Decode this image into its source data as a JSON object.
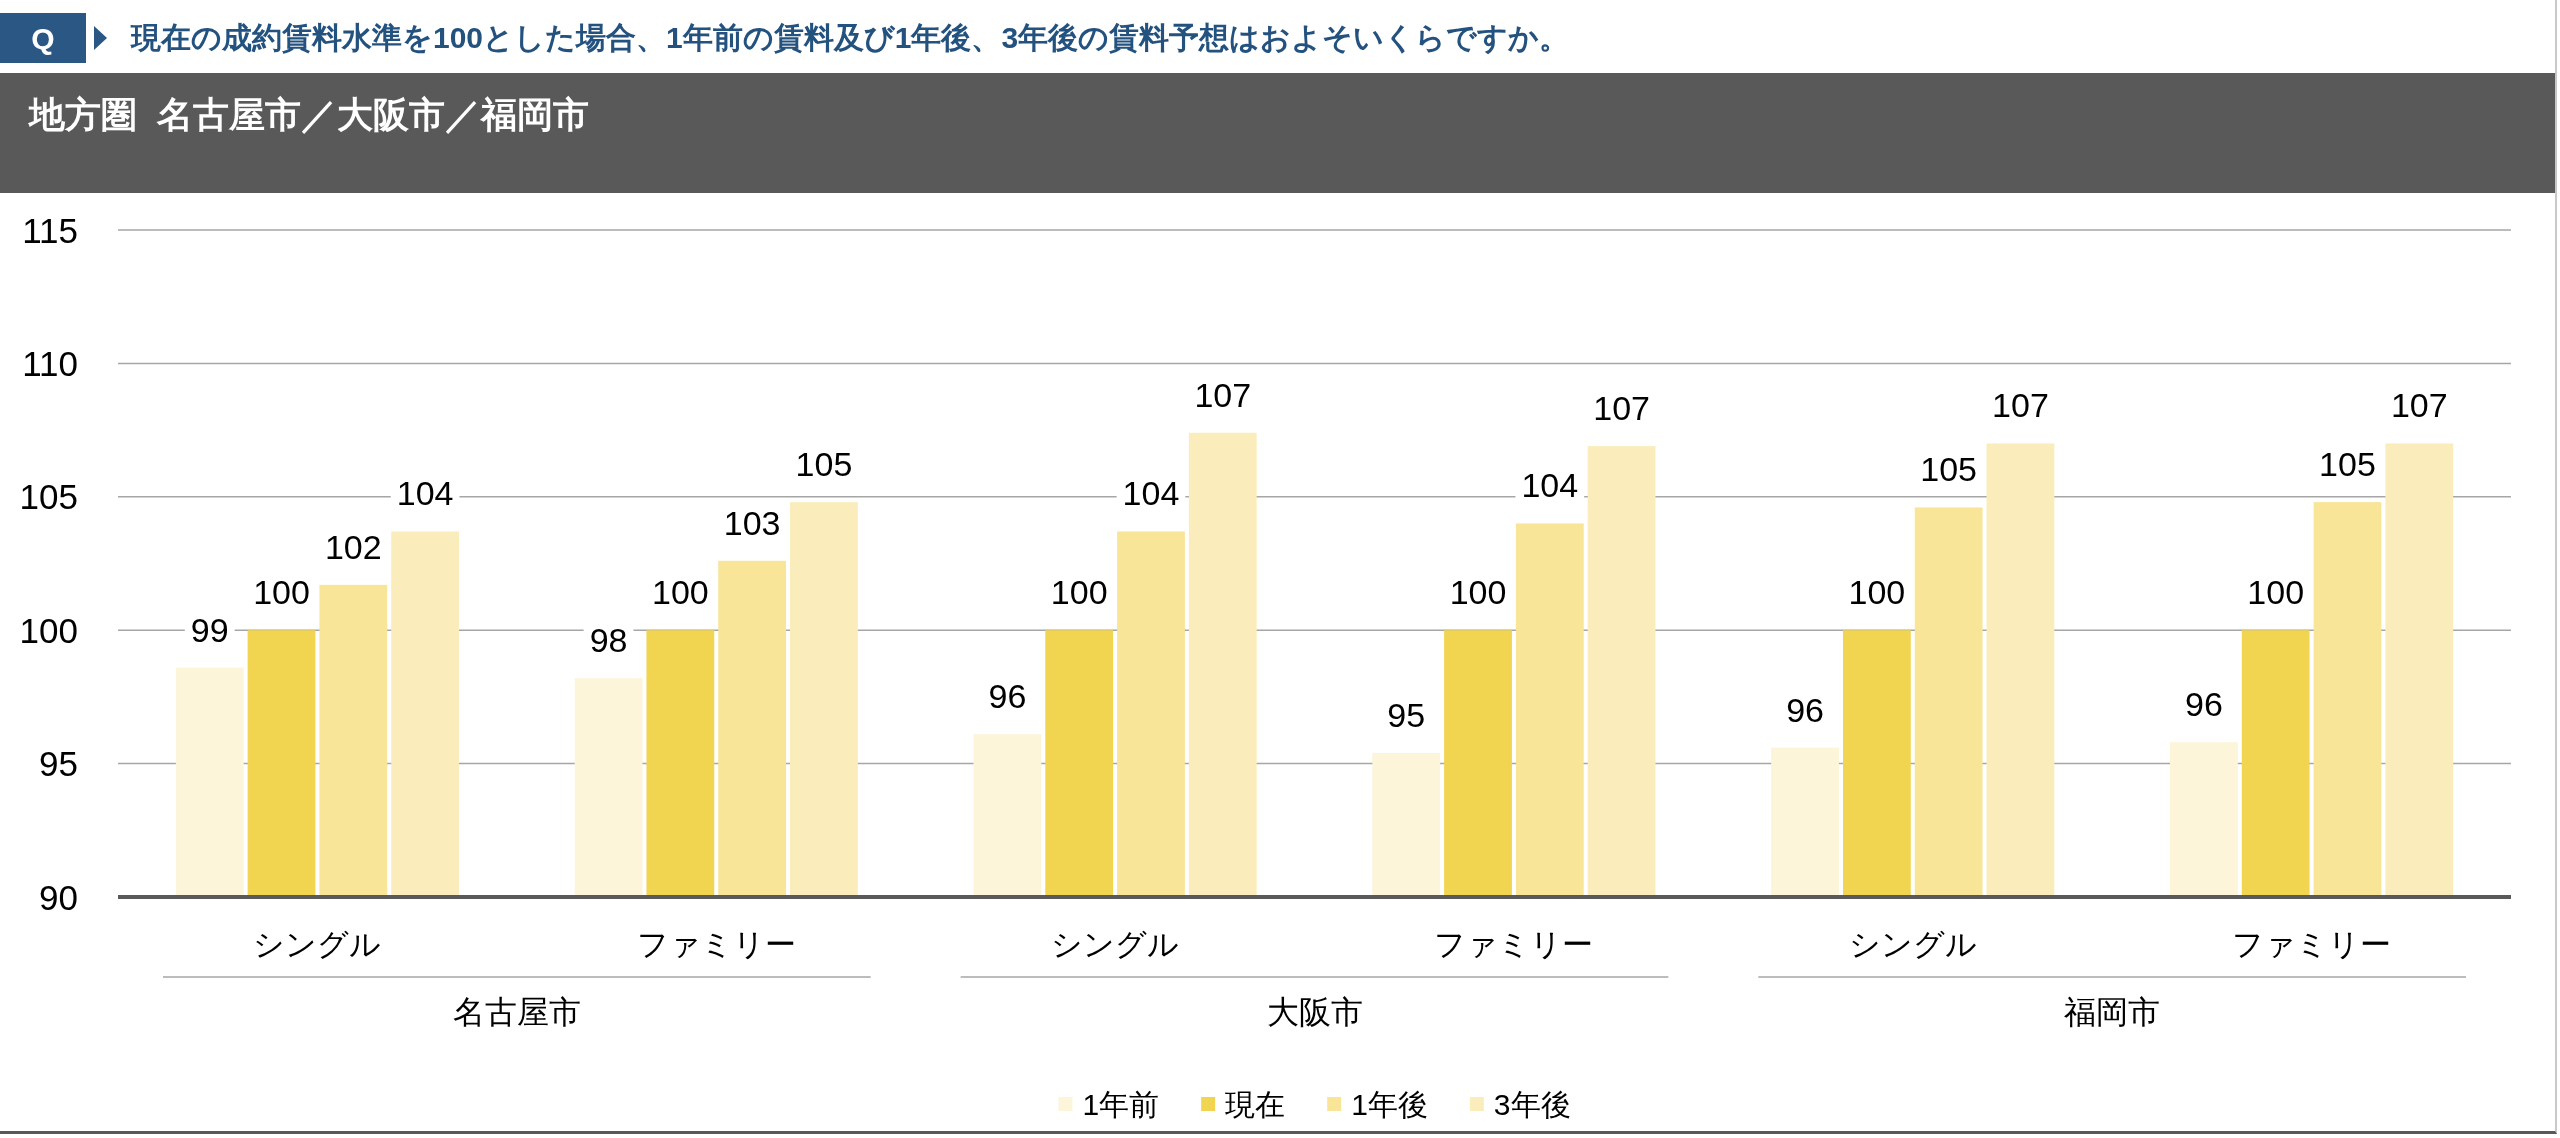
{
  "chart_data": {
    "type": "bar",
    "title": "現在の成約賃料水準を100とした場合、1年前の賃料及び1年後、3年後の賃料予想はおよそいくらですか。",
    "subtitle": "地方圏  名古屋市／大阪市／福岡市",
    "annotations": [
      "Q",
      "名古屋市",
      "大阪市",
      "福岡市"
    ],
    "categories": [
      "シングル",
      "ファミリー",
      "シングル",
      "ファミリー",
      "シングル",
      "ファミリー"
    ],
    "series": [
      {
        "name": "1年前",
        "color": "#fdf5d9",
        "values": [
          98.6,
          98.2,
          96.1,
          95.4,
          95.6,
          95.8
        ],
        "value_labels": [
          "99",
          "98",
          "96",
          "95",
          "96",
          "96"
        ]
      },
      {
        "name": "現在",
        "color": "#f1d44f",
        "values": [
          100,
          100,
          100,
          100,
          100,
          100
        ],
        "value_labels": [
          "100",
          "100",
          "100",
          "100",
          "100",
          "100"
        ]
      },
      {
        "name": "1年後",
        "color": "#f8e597",
        "values": [
          101.7,
          102.6,
          103.7,
          104.0,
          104.6,
          104.8
        ],
        "value_labels": [
          "102",
          "103",
          "104",
          "104",
          "105",
          "105"
        ]
      },
      {
        "name": "3年後",
        "color": "#faedbb",
        "values": [
          103.7,
          104.8,
          107.4,
          106.9,
          107.0,
          107.0
        ],
        "value_labels": [
          "104",
          "105",
          "107",
          "107",
          "107",
          "107"
        ]
      }
    ],
    "ylim": [
      90,
      115
    ],
    "yticks": [
      90,
      95,
      100,
      105,
      110,
      115
    ],
    "grid": "y",
    "legend": "bottom"
  }
}
